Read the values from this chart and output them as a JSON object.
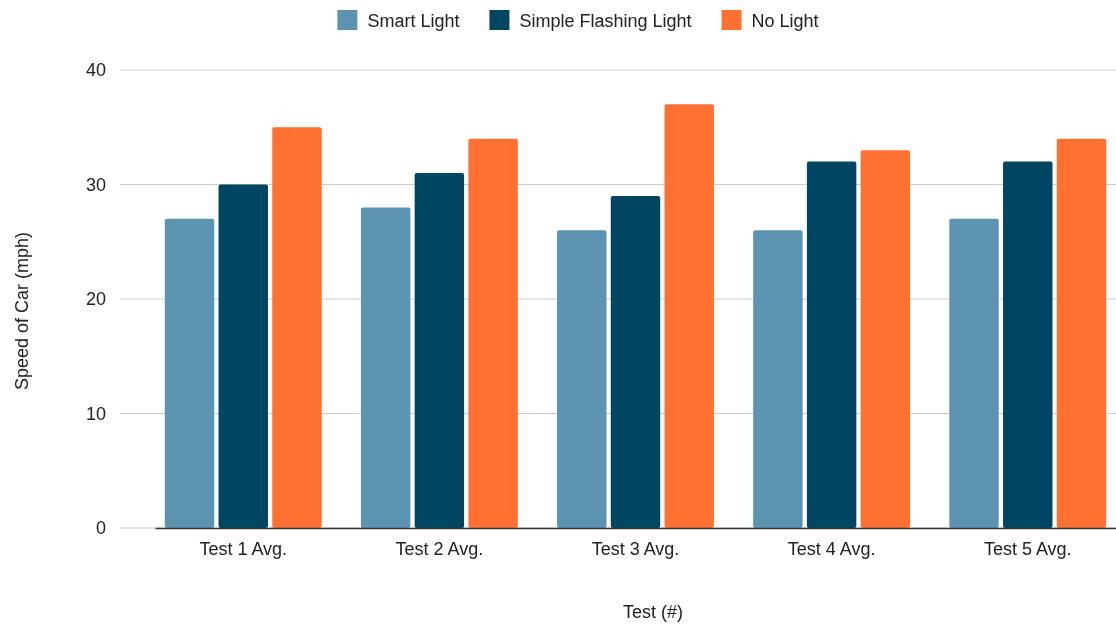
{
  "chart_data": {
    "type": "bar",
    "xlabel": "Test (#)",
    "ylabel": "Speed of Car (mph)",
    "categories": [
      "Test 1 Avg.",
      "Test 2 Avg.",
      "Test 3 Avg.",
      "Test 4 Avg.",
      "Test 5 Avg."
    ],
    "series": [
      {
        "name": "Smart Light",
        "color": "#5b93b0",
        "values": [
          27,
          28,
          26,
          26,
          27
        ]
      },
      {
        "name": "Simple Flashing Light",
        "color": "#004561",
        "values": [
          30,
          31,
          29,
          32,
          32
        ]
      },
      {
        "name": "No Light",
        "color": "#ff7033",
        "values": [
          35,
          34,
          37,
          33,
          34
        ]
      }
    ],
    "ylim": [
      0,
      40
    ],
    "yticks": [
      0,
      10,
      20,
      30,
      40
    ],
    "grid": "y",
    "legend": "top"
  }
}
